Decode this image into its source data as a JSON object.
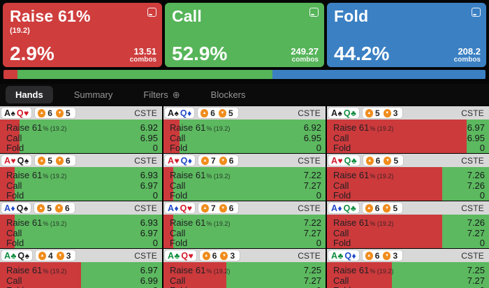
{
  "colors": {
    "raise": "#cf3d3d",
    "call": "#56b459",
    "fold": "#3b80c3",
    "cell_green": "#5cb95f",
    "cell_red": "#cc3a3c",
    "badge": "#f08d1e"
  },
  "summary": [
    {
      "action": "Raise 61%",
      "sub": "(19.2)",
      "freq": "2.9%",
      "combos": "13.51",
      "combos_label": "combos"
    },
    {
      "action": "Call",
      "sub": "",
      "freq": "52.9%",
      "combos": "249.27",
      "combos_label": "combos"
    },
    {
      "action": "Fold",
      "sub": "",
      "freq": "44.2%",
      "combos": "208.2",
      "combos_label": "combos"
    }
  ],
  "strategy_bar": [
    {
      "name": "raise",
      "width": "2.9%"
    },
    {
      "name": "call",
      "width": "52.9%"
    },
    {
      "name": "fold",
      "width": "44.2%"
    }
  ],
  "tabs": [
    {
      "label": "Hands"
    },
    {
      "label": "Summary"
    },
    {
      "label": "Filters",
      "icon": "⊕"
    },
    {
      "label": "Blockers"
    }
  ],
  "cell_labels": {
    "raise": "Raise 61",
    "raise_suffix": "% (19.2)",
    "call": "Call",
    "fold": "Fold"
  },
  "hands": [
    {
      "cards": [
        {
          "r": "A",
          "s": "♠",
          "c": "#1c1c1e"
        },
        {
          "r": "Q",
          "s": "♥",
          "c": "#d31a2b"
        }
      ],
      "up": "6",
      "down": "5",
      "tag": "CSTE",
      "raise_pct": "12%",
      "values": [
        "6.92",
        "6.95",
        "0"
      ]
    },
    {
      "cards": [
        {
          "r": "A",
          "s": "♠",
          "c": "#1c1c1e"
        },
        {
          "r": "Q",
          "s": "♦",
          "c": "#1f49c8"
        }
      ],
      "up": "6",
      "down": "5",
      "tag": "CSTE",
      "raise_pct": "10%",
      "values": [
        "6.92",
        "6.95",
        "0"
      ]
    },
    {
      "cards": [
        {
          "r": "A",
          "s": "♠",
          "c": "#1c1c1e"
        },
        {
          "r": "Q",
          "s": "♣",
          "c": "#0f8d3e"
        }
      ],
      "up": "5",
      "down": "3",
      "tag": "CSTE",
      "raise_pct": "86%",
      "values": [
        "6.97",
        "6.95",
        "0"
      ]
    },
    {
      "cards": [
        {
          "r": "A",
          "s": "♥",
          "c": "#d31a2b"
        },
        {
          "r": "Q",
          "s": "♠",
          "c": "#1c1c1e"
        }
      ],
      "up": "5",
      "down": "6",
      "tag": "CSTE",
      "raise_pct": "9%",
      "values": [
        "6.93",
        "6.97",
        "0"
      ]
    },
    {
      "cards": [
        {
          "r": "A",
          "s": "♥",
          "c": "#d31a2b"
        },
        {
          "r": "Q",
          "s": "♦",
          "c": "#1f49c8"
        }
      ],
      "up": "7",
      "down": "6",
      "tag": "CSTE",
      "raise_pct": "6%",
      "values": [
        "7.22",
        "7.27",
        "0"
      ]
    },
    {
      "cards": [
        {
          "r": "A",
          "s": "♥",
          "c": "#d31a2b"
        },
        {
          "r": "Q",
          "s": "♣",
          "c": "#0f8d3e"
        }
      ],
      "up": "6",
      "down": "5",
      "tag": "CSTE",
      "raise_pct": "71%",
      "values": [
        "7.26",
        "7.26",
        "0"
      ]
    },
    {
      "cards": [
        {
          "r": "A",
          "s": "♦",
          "c": "#1f49c8"
        },
        {
          "r": "Q",
          "s": "♠",
          "c": "#1c1c1e"
        }
      ],
      "up": "5",
      "down": "6",
      "tag": "CSTE",
      "raise_pct": "9%",
      "values": [
        "6.93",
        "6.97",
        "0"
      ]
    },
    {
      "cards": [
        {
          "r": "A",
          "s": "♦",
          "c": "#1f49c8"
        },
        {
          "r": "Q",
          "s": "♥",
          "c": "#d31a2b"
        }
      ],
      "up": "7",
      "down": "6",
      "tag": "CSTE",
      "raise_pct": "6%",
      "values": [
        "7.22",
        "7.27",
        "0"
      ]
    },
    {
      "cards": [
        {
          "r": "A",
          "s": "♦",
          "c": "#1f49c8"
        },
        {
          "r": "Q",
          "s": "♣",
          "c": "#0f8d3e"
        }
      ],
      "up": "6",
      "down": "5",
      "tag": "CSTE",
      "raise_pct": "71%",
      "values": [
        "7.26",
        "7.27",
        "0"
      ]
    },
    {
      "cards": [
        {
          "r": "A",
          "s": "♣",
          "c": "#0f8d3e"
        },
        {
          "r": "Q",
          "s": "♠",
          "c": "#1c1c1e"
        }
      ],
      "up": "4",
      "down": "3",
      "tag": "CSTE",
      "raise_pct": "50%",
      "values": [
        "6.97",
        "6.99",
        "0"
      ]
    },
    {
      "cards": [
        {
          "r": "A",
          "s": "♣",
          "c": "#0f8d3e"
        },
        {
          "r": "Q",
          "s": "♥",
          "c": "#d31a2b"
        }
      ],
      "up": "6",
      "down": "3",
      "tag": "CSTE",
      "raise_pct": "39%",
      "values": [
        "7.25",
        "7.27",
        "0"
      ]
    },
    {
      "cards": [
        {
          "r": "A",
          "s": "♣",
          "c": "#0f8d3e"
        },
        {
          "r": "Q",
          "s": "♦",
          "c": "#1f49c8"
        }
      ],
      "up": "6",
      "down": "3",
      "tag": "CSTE",
      "raise_pct": "40%",
      "values": [
        "7.25",
        "7.27",
        "0"
      ]
    }
  ]
}
